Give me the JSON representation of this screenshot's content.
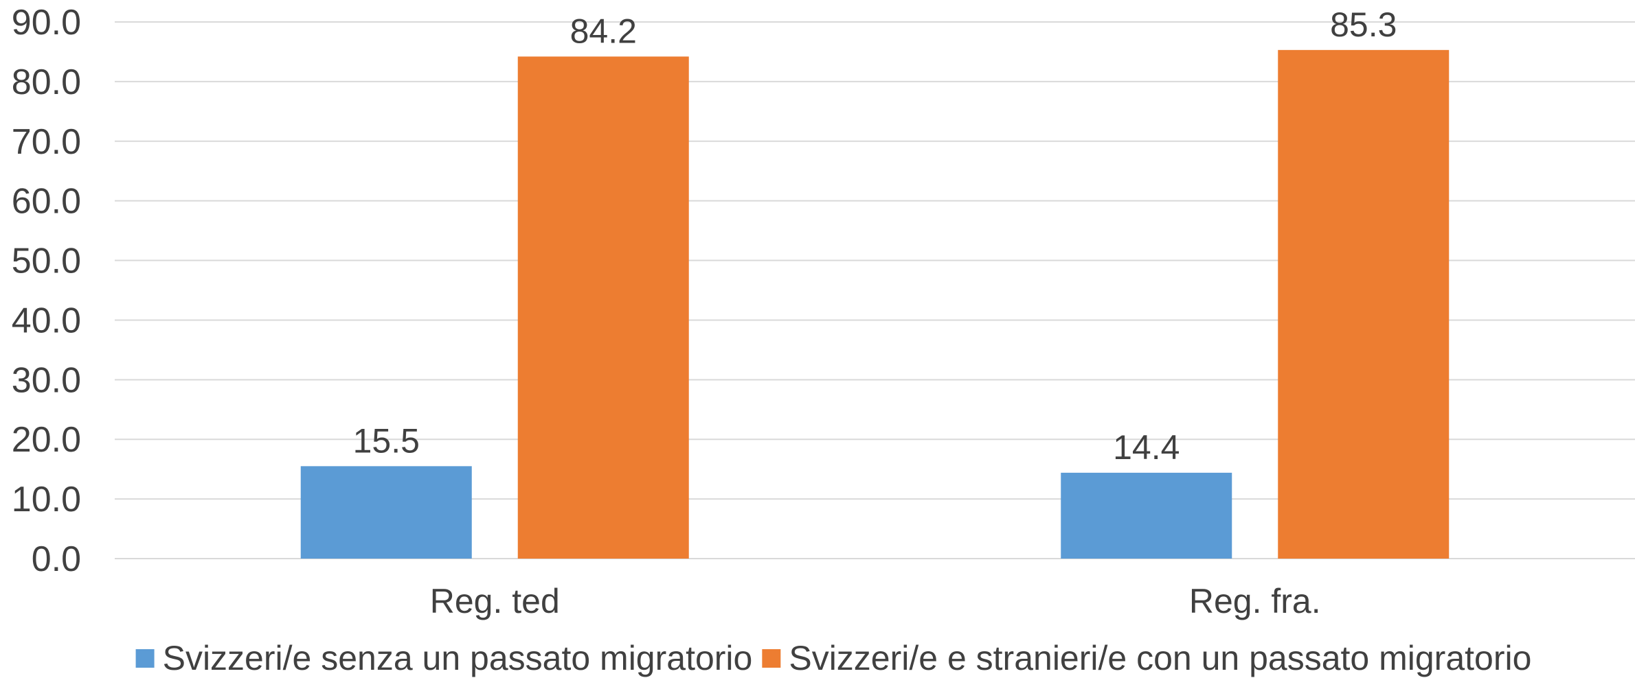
{
  "chart_data": {
    "type": "bar",
    "categories": [
      "Reg. ted",
      "Reg. fra."
    ],
    "series": [
      {
        "name": "Svizzeri/e senza un passato migratorio",
        "color": "#5b9bd5",
        "values": [
          15.5,
          14.4
        ]
      },
      {
        "name": "Svizzeri/e e stranieri/e con un passato migratorio",
        "color": "#ed7d31",
        "values": [
          84.2,
          85.3
        ]
      }
    ],
    "ylim": [
      0,
      90
    ],
    "yticks": [
      {
        "value": 0,
        "label": "0.0"
      },
      {
        "value": 10,
        "label": "10.0"
      },
      {
        "value": 20,
        "label": "20.0"
      },
      {
        "value": 30,
        "label": "30.0"
      },
      {
        "value": 40,
        "label": "40.0"
      },
      {
        "value": 50,
        "label": "50.0"
      },
      {
        "value": 60,
        "label": "60.0"
      },
      {
        "value": 70,
        "label": "70.0"
      },
      {
        "value": 80,
        "label": "80.0"
      },
      {
        "value": 90,
        "label": "90.0"
      }
    ],
    "grid": true,
    "legend": "bottom"
  }
}
